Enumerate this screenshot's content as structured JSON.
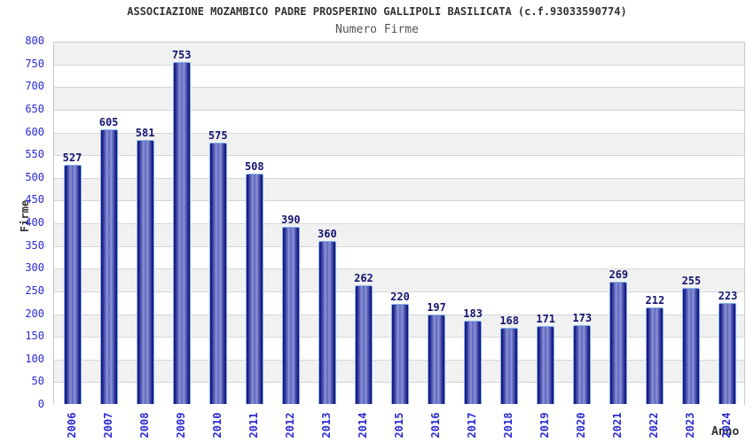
{
  "chart_data": {
    "type": "bar",
    "title": "ASSOCIAZIONE MOZAMBICO PADRE PROSPERINO GALLIPOLI BASILICATA (c.f.93033590774)",
    "subtitle": "Numero Firme",
    "categories": [
      "2006",
      "2007",
      "2008",
      "2009",
      "2010",
      "2011",
      "2012",
      "2013",
      "2014",
      "2015",
      "2016",
      "2017",
      "2018",
      "2019",
      "2020",
      "2021",
      "2022",
      "2023",
      "2024"
    ],
    "values": [
      527,
      605,
      581,
      753,
      575,
      508,
      390,
      360,
      262,
      220,
      197,
      183,
      168,
      171,
      173,
      269,
      212,
      255,
      223
    ],
    "xlabel": "Anno",
    "ylabel": "Firme",
    "ylim": [
      0,
      800
    ],
    "yticks": [
      0,
      50,
      100,
      150,
      200,
      250,
      300,
      350,
      400,
      450,
      500,
      550,
      600,
      650,
      700,
      750,
      800
    ],
    "grid": true,
    "legend": "none",
    "background_bands": "alternating horizontal gray/white stripes, gray in top band",
    "colors": {
      "bar_edge_dark": "#0f0f78",
      "bar_mid_shade": "#2a2f96",
      "bar_highlight": "#8d96d8",
      "bar_center": "#5a64bd",
      "bar_border": "#7fb0e6",
      "tick_label": "#2a2ad2",
      "value_label": "#14146e",
      "band_gray": "#f1f1f1",
      "band_white": "#ffffff",
      "grid_line": "#d6d6d6",
      "plot_border": "#c9c9c9",
      "title_color": "#333333",
      "subtitle_color": "#555555",
      "axis_label_color": "#333333"
    }
  }
}
